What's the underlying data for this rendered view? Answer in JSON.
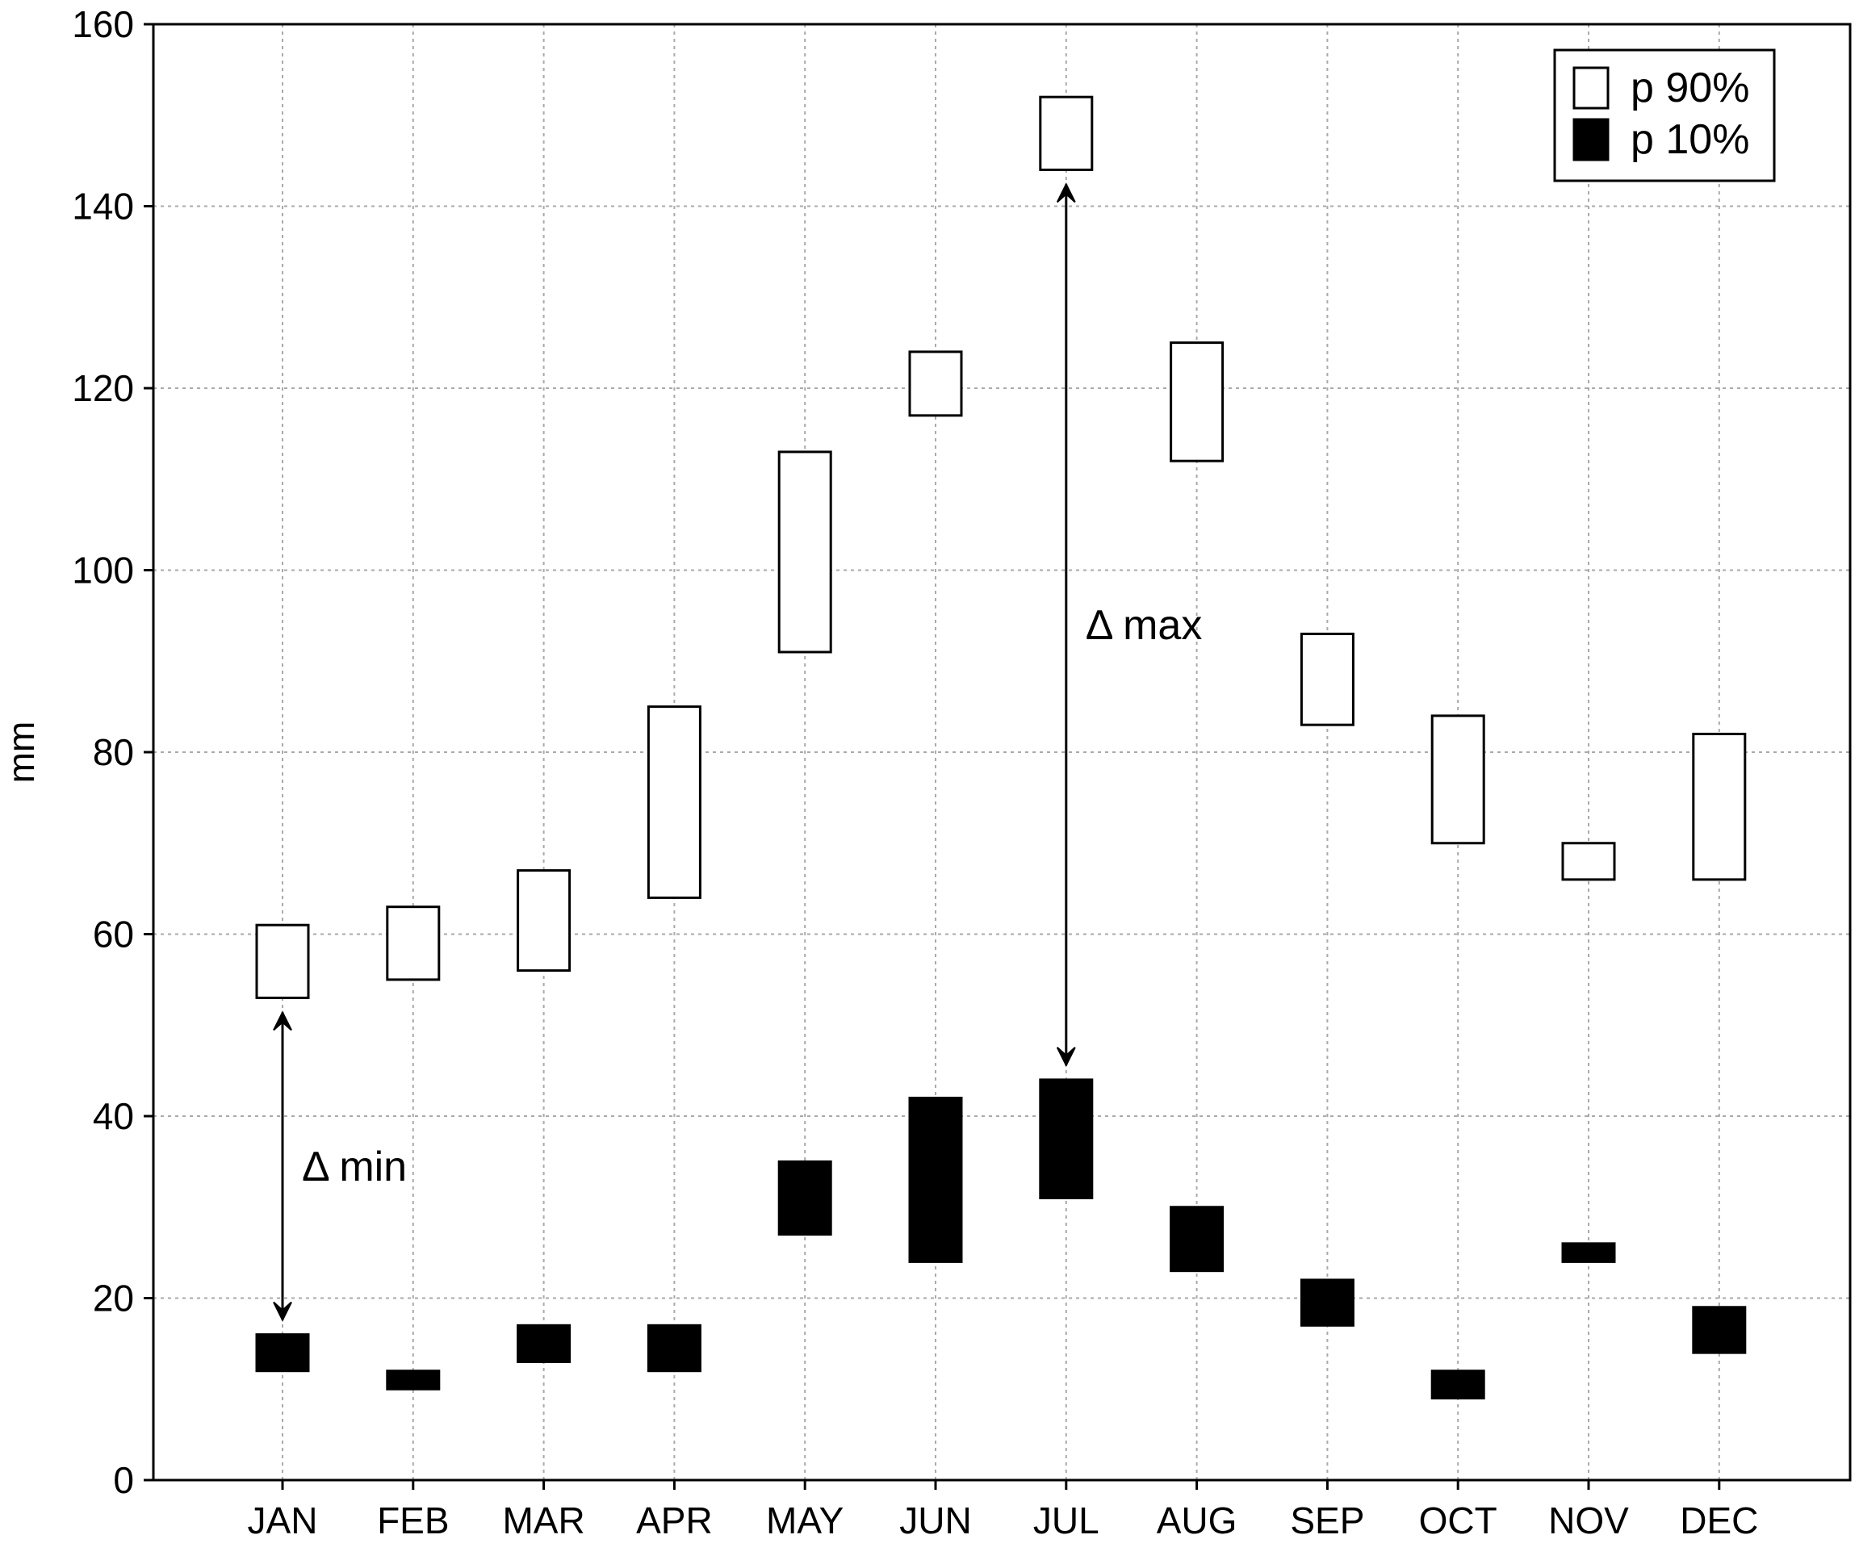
{
  "chart_data": {
    "type": "floating-bar",
    "categories": [
      "JAN",
      "FEB",
      "MAR",
      "APR",
      "MAY",
      "JUN",
      "JUL",
      "AUG",
      "SEP",
      "OCT",
      "NOV",
      "DEC"
    ],
    "series": [
      {
        "name": "p 90%",
        "fill": "#ffffff",
        "stroke": "#000000",
        "ranges": [
          [
            53,
            61
          ],
          [
            55,
            63
          ],
          [
            56,
            67
          ],
          [
            64,
            85
          ],
          [
            91,
            113
          ],
          [
            117,
            124
          ],
          [
            144,
            152
          ],
          [
            112,
            125
          ],
          [
            83,
            93
          ],
          [
            70,
            84
          ],
          [
            66,
            70
          ],
          [
            66,
            82
          ]
        ]
      },
      {
        "name": "p 10%",
        "fill": "#000000",
        "stroke": "#000000",
        "ranges": [
          [
            12,
            16
          ],
          [
            10,
            12
          ],
          [
            13,
            17
          ],
          [
            12,
            17
          ],
          [
            27,
            35
          ],
          [
            24,
            42
          ],
          [
            31,
            44
          ],
          [
            23,
            30
          ],
          [
            17,
            22
          ],
          [
            9,
            12
          ],
          [
            24,
            26
          ],
          [
            14,
            19
          ]
        ]
      }
    ],
    "ylabel": "mm",
    "xlabel": "",
    "ylim": [
      0,
      160
    ],
    "yticks": [
      0,
      20,
      40,
      60,
      80,
      100,
      120,
      140,
      160
    ],
    "grid": true,
    "legend_position": "top-right",
    "annotations": [
      {
        "label": "Δ min",
        "category": "JAN",
        "from": 16,
        "to": 53
      },
      {
        "label": "Δ max",
        "category": "JUL",
        "from": 44,
        "to": 144
      }
    ]
  }
}
